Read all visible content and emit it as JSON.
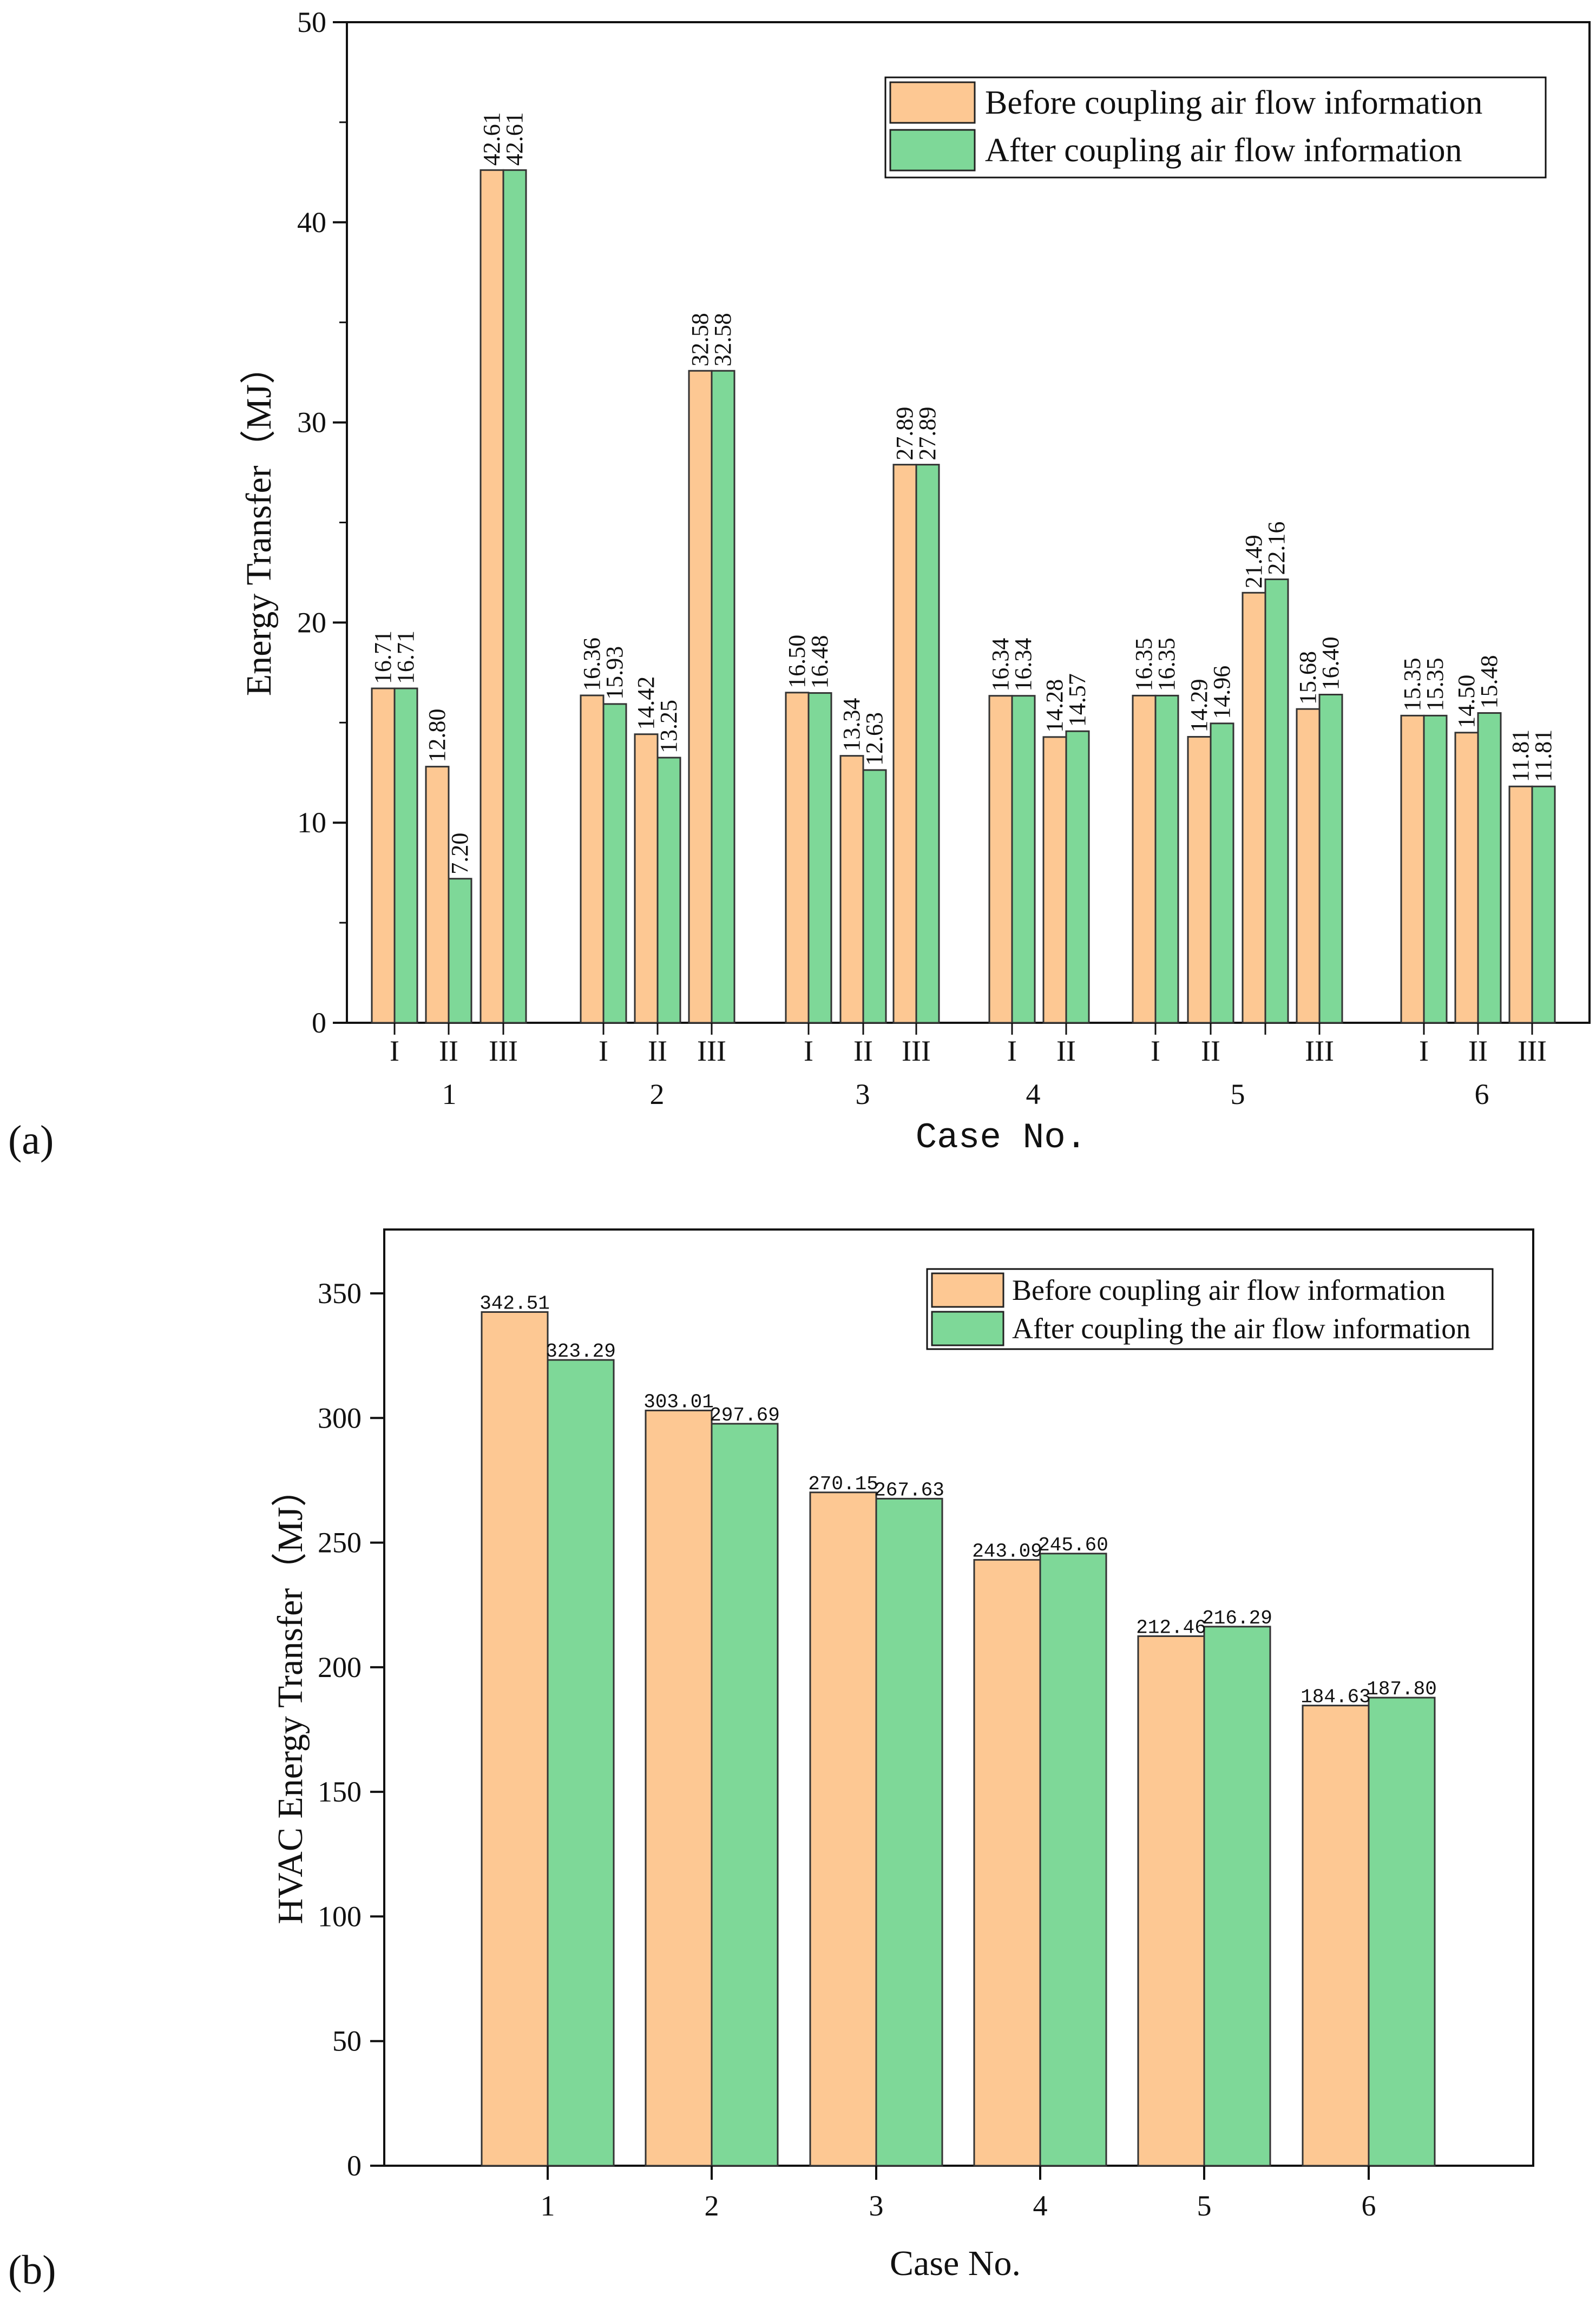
{
  "chart_data": [
    {
      "type": "bar",
      "panel_label": "(a)",
      "ylabel": "Energy Transfer（MJ）",
      "xlabel": "Case No.",
      "ylim": [
        0,
        50
      ],
      "yticks": [
        0,
        10,
        20,
        30,
        40,
        50
      ],
      "legend_position": "top-right",
      "groups": [
        {
          "case": "1",
          "subs": [
            "I",
            "II",
            "III"
          ]
        },
        {
          "case": "2",
          "subs": [
            "I",
            "II",
            "III"
          ]
        },
        {
          "case": "3",
          "subs": [
            "I",
            "II",
            "III"
          ]
        },
        {
          "case": "4",
          "subs": [
            "I",
            "II"
          ]
        },
        {
          "case": "5",
          "subs": [
            "I",
            "II",
            "",
            "III"
          ]
        },
        {
          "case": "6",
          "subs": [
            "I",
            "II",
            "III"
          ]
        }
      ],
      "series": [
        {
          "name": "Before coupling air flow information",
          "color": "#FDC893",
          "values": [
            16.71,
            12.8,
            42.61,
            16.36,
            14.42,
            32.58,
            16.5,
            13.34,
            27.89,
            16.34,
            14.28,
            16.35,
            14.29,
            21.49,
            15.68,
            15.35,
            14.5,
            11.81
          ],
          "labels": [
            "16.71",
            "12.80",
            "42.61",
            "16.36",
            "14.42",
            "32.58",
            "16.50",
            "13.34",
            "27.89",
            "16.34",
            "14.28",
            "16.35",
            "14.29",
            "21.49",
            "15.68",
            "15.35",
            "14.50",
            "11.81"
          ]
        },
        {
          "name": "After coupling air flow information",
          "color": "#7ED898",
          "values": [
            16.71,
            7.2,
            42.61,
            15.93,
            13.25,
            32.58,
            16.48,
            12.63,
            27.89,
            16.34,
            14.57,
            16.35,
            14.96,
            22.16,
            16.4,
            15.35,
            15.48,
            11.81
          ],
          "labels": [
            "16.71",
            "7.20",
            "42.61",
            "15.93",
            "13.25",
            "32.58",
            "16.48",
            "12.63",
            "27.89",
            "16.34",
            "14.57",
            "16.35",
            "14.96",
            "22.16",
            "16.40",
            "15.35",
            "15.48",
            "11.81"
          ]
        }
      ]
    },
    {
      "type": "bar",
      "panel_label": "(b)",
      "ylabel": "HVAC Energy Transfer（MJ）",
      "xlabel": "Case No.",
      "ylim": [
        0,
        375
      ],
      "yticks": [
        0,
        50,
        100,
        150,
        200,
        250,
        300,
        350
      ],
      "legend_position": "top-right",
      "categories": [
        "1",
        "2",
        "3",
        "4",
        "5",
        "6"
      ],
      "series": [
        {
          "name": "Before coupling air flow information",
          "color": "#FDC893",
          "values": [
            342.51,
            303.01,
            270.15,
            243.09,
            212.46,
            184.63
          ],
          "labels": [
            "342.51",
            "303.01",
            "270.15",
            "243.09",
            "212.46",
            "184.63"
          ]
        },
        {
          "name": "After coupling the air flow information",
          "color": "#7ED898",
          "values": [
            323.29,
            297.69,
            267.63,
            245.6,
            216.29,
            187.8
          ],
          "labels": [
            "323.29",
            "297.69",
            "267.63",
            "245.60",
            "216.29",
            "187.80"
          ]
        }
      ]
    }
  ]
}
